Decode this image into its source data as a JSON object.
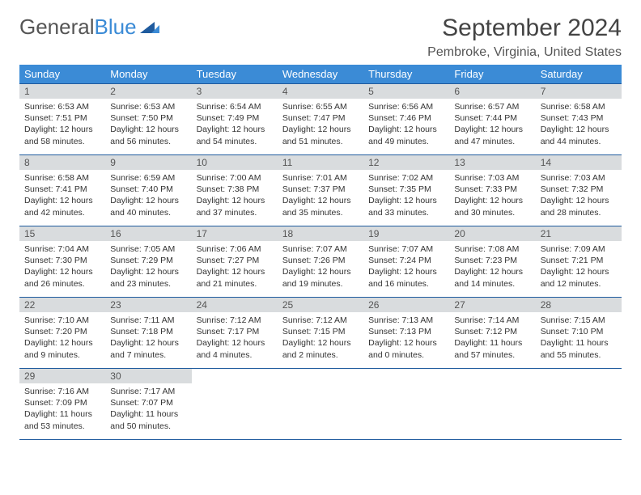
{
  "logo": {
    "text1": "General",
    "text2": "Blue"
  },
  "title": "September 2024",
  "location": "Pembroke, Virginia, United States",
  "colors": {
    "header_bg": "#3b8bd6",
    "border": "#1f5b9e",
    "daynum_bg": "#d9dcde",
    "text": "#333333"
  },
  "weekdays": [
    "Sunday",
    "Monday",
    "Tuesday",
    "Wednesday",
    "Thursday",
    "Friday",
    "Saturday"
  ],
  "days": [
    {
      "n": "1",
      "sunrise": "6:53 AM",
      "sunset": "7:51 PM",
      "daylight": "12 hours and 58 minutes."
    },
    {
      "n": "2",
      "sunrise": "6:53 AM",
      "sunset": "7:50 PM",
      "daylight": "12 hours and 56 minutes."
    },
    {
      "n": "3",
      "sunrise": "6:54 AM",
      "sunset": "7:49 PM",
      "daylight": "12 hours and 54 minutes."
    },
    {
      "n": "4",
      "sunrise": "6:55 AM",
      "sunset": "7:47 PM",
      "daylight": "12 hours and 51 minutes."
    },
    {
      "n": "5",
      "sunrise": "6:56 AM",
      "sunset": "7:46 PM",
      "daylight": "12 hours and 49 minutes."
    },
    {
      "n": "6",
      "sunrise": "6:57 AM",
      "sunset": "7:44 PM",
      "daylight": "12 hours and 47 minutes."
    },
    {
      "n": "7",
      "sunrise": "6:58 AM",
      "sunset": "7:43 PM",
      "daylight": "12 hours and 44 minutes."
    },
    {
      "n": "8",
      "sunrise": "6:58 AM",
      "sunset": "7:41 PM",
      "daylight": "12 hours and 42 minutes."
    },
    {
      "n": "9",
      "sunrise": "6:59 AM",
      "sunset": "7:40 PM",
      "daylight": "12 hours and 40 minutes."
    },
    {
      "n": "10",
      "sunrise": "7:00 AM",
      "sunset": "7:38 PM",
      "daylight": "12 hours and 37 minutes."
    },
    {
      "n": "11",
      "sunrise": "7:01 AM",
      "sunset": "7:37 PM",
      "daylight": "12 hours and 35 minutes."
    },
    {
      "n": "12",
      "sunrise": "7:02 AM",
      "sunset": "7:35 PM",
      "daylight": "12 hours and 33 minutes."
    },
    {
      "n": "13",
      "sunrise": "7:03 AM",
      "sunset": "7:33 PM",
      "daylight": "12 hours and 30 minutes."
    },
    {
      "n": "14",
      "sunrise": "7:03 AM",
      "sunset": "7:32 PM",
      "daylight": "12 hours and 28 minutes."
    },
    {
      "n": "15",
      "sunrise": "7:04 AM",
      "sunset": "7:30 PM",
      "daylight": "12 hours and 26 minutes."
    },
    {
      "n": "16",
      "sunrise": "7:05 AM",
      "sunset": "7:29 PM",
      "daylight": "12 hours and 23 minutes."
    },
    {
      "n": "17",
      "sunrise": "7:06 AM",
      "sunset": "7:27 PM",
      "daylight": "12 hours and 21 minutes."
    },
    {
      "n": "18",
      "sunrise": "7:07 AM",
      "sunset": "7:26 PM",
      "daylight": "12 hours and 19 minutes."
    },
    {
      "n": "19",
      "sunrise": "7:07 AM",
      "sunset": "7:24 PM",
      "daylight": "12 hours and 16 minutes."
    },
    {
      "n": "20",
      "sunrise": "7:08 AM",
      "sunset": "7:23 PM",
      "daylight": "12 hours and 14 minutes."
    },
    {
      "n": "21",
      "sunrise": "7:09 AM",
      "sunset": "7:21 PM",
      "daylight": "12 hours and 12 minutes."
    },
    {
      "n": "22",
      "sunrise": "7:10 AM",
      "sunset": "7:20 PM",
      "daylight": "12 hours and 9 minutes."
    },
    {
      "n": "23",
      "sunrise": "7:11 AM",
      "sunset": "7:18 PM",
      "daylight": "12 hours and 7 minutes."
    },
    {
      "n": "24",
      "sunrise": "7:12 AM",
      "sunset": "7:17 PM",
      "daylight": "12 hours and 4 minutes."
    },
    {
      "n": "25",
      "sunrise": "7:12 AM",
      "sunset": "7:15 PM",
      "daylight": "12 hours and 2 minutes."
    },
    {
      "n": "26",
      "sunrise": "7:13 AM",
      "sunset": "7:13 PM",
      "daylight": "12 hours and 0 minutes."
    },
    {
      "n": "27",
      "sunrise": "7:14 AM",
      "sunset": "7:12 PM",
      "daylight": "11 hours and 57 minutes."
    },
    {
      "n": "28",
      "sunrise": "7:15 AM",
      "sunset": "7:10 PM",
      "daylight": "11 hours and 55 minutes."
    },
    {
      "n": "29",
      "sunrise": "7:16 AM",
      "sunset": "7:09 PM",
      "daylight": "11 hours and 53 minutes."
    },
    {
      "n": "30",
      "sunrise": "7:17 AM",
      "sunset": "7:07 PM",
      "daylight": "11 hours and 50 minutes."
    }
  ],
  "labels": {
    "sunrise": "Sunrise:",
    "sunset": "Sunset:",
    "daylight": "Daylight:"
  }
}
